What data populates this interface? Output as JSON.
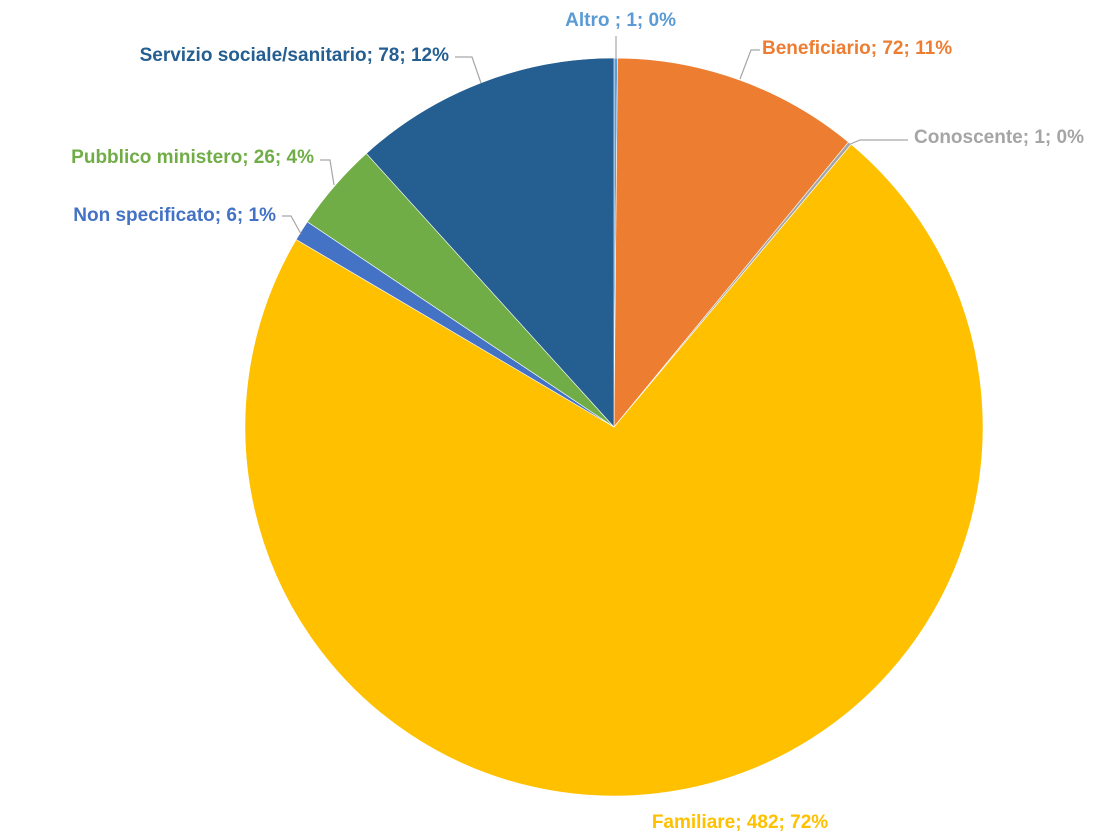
{
  "chart_data": {
    "type": "pie",
    "title": "",
    "legend": "none",
    "start_angle_deg": 0,
    "direction": "clockwise",
    "slices": [
      {
        "label": "Altro ",
        "value": 1,
        "percent": "0%",
        "data_label": "Altro ; 1; 0%",
        "color": "#5B9BD5"
      },
      {
        "label": "Beneficiario",
        "value": 72,
        "percent": "11%",
        "data_label": "Beneficiario; 72; 11%",
        "color": "#ED7D31"
      },
      {
        "label": "Conoscente",
        "value": 1,
        "percent": "0%",
        "data_label": "Conoscente; 1; 0%",
        "color": "#A5A5A5"
      },
      {
        "label": "Familiare",
        "value": 482,
        "percent": "72%",
        "data_label": "Familiare; 482; 72%",
        "color": "#FFC000"
      },
      {
        "label": "Non specificato",
        "value": 6,
        "percent": "1%",
        "data_label": "Non specificato; 6; 1%",
        "color": "#4472C4"
      },
      {
        "label": "Pubblico ministero",
        "value": 26,
        "percent": "4%",
        "data_label": "Pubblico ministero; 26; 4%",
        "color": "#70AD47"
      },
      {
        "label": "Servizio sociale/sanitario",
        "value": 78,
        "percent": "12%",
        "data_label": "Servizio sociale/sanitario; 78; 12%",
        "color": "#255E91"
      }
    ]
  }
}
